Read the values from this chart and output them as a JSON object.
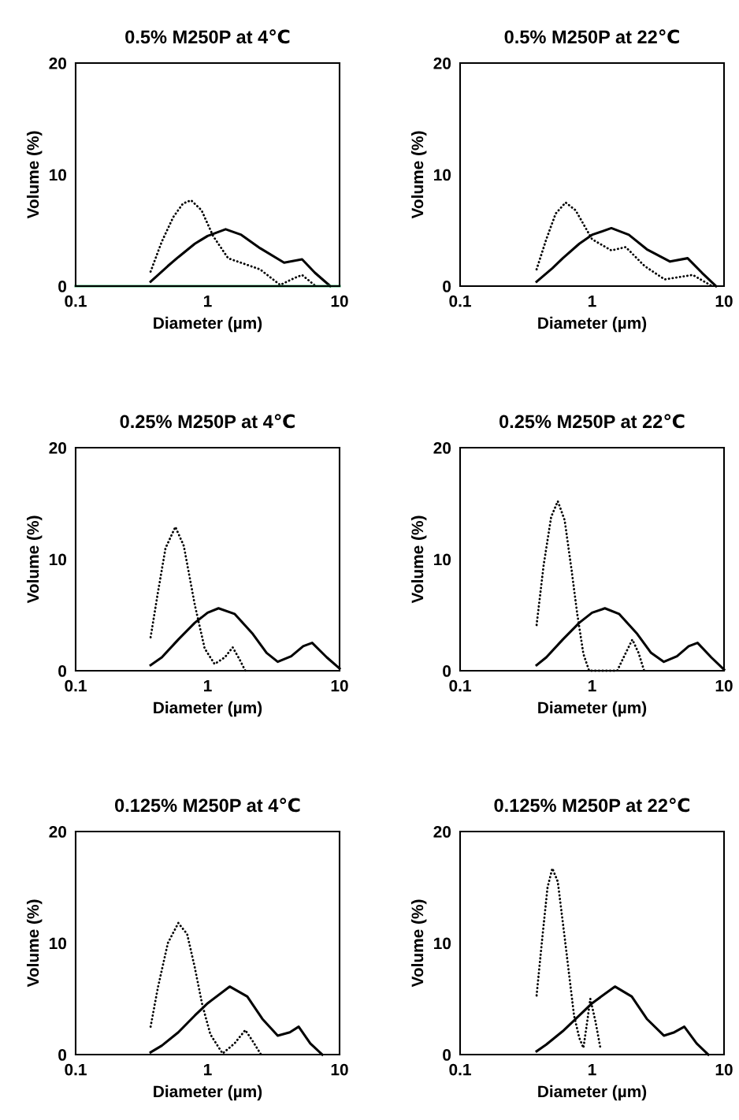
{
  "chart_data": [
    {
      "type": "line",
      "title": "0.5% M250P at 4℃",
      "xlabel": "Diameter (µm)",
      "ylabel": "Volume (%)",
      "log": "x",
      "xlim": [
        0.1,
        10
      ],
      "xticks": [
        0.1,
        1,
        10
      ],
      "ylim": [
        0,
        20
      ],
      "yticks": [
        0,
        10,
        20
      ],
      "grid": false,
      "marker": "none",
      "series": [
        {
          "x": [
            0.37,
            0.5,
            0.6,
            0.8,
            1.0,
            1.37,
            1.8,
            2.5,
            3.8,
            5.2,
            6.5,
            8.5
          ],
          "values": [
            0.4,
            1.8,
            2.6,
            3.8,
            4.5,
            5.1,
            4.6,
            3.4,
            2.1,
            2.4,
            1.2,
            0
          ],
          "color": "#000000",
          "line_style": "solid"
        },
        {
          "x": [
            0.37,
            0.45,
            0.55,
            0.65,
            0.75,
            0.9,
            1.1,
            1.43,
            2.0,
            2.5,
            3.55,
            4.5,
            5.2,
            6.6
          ],
          "values": [
            1.3,
            4.0,
            6.2,
            7.4,
            7.7,
            6.8,
            4.5,
            2.5,
            1.9,
            1.5,
            0.1,
            0.7,
            1.0,
            0
          ],
          "color": "#000000",
          "line_style": "dotted"
        },
        {
          "x": [
            0.1,
            10
          ],
          "values": [
            0,
            0
          ],
          "color": "#3cb371",
          "line_style": "solid"
        }
      ]
    },
    {
      "type": "line",
      "title": "0.5% M250P at 22℃",
      "xlabel": "Diameter (µm)",
      "ylabel": "Volume (%)",
      "log": "x",
      "xlim": [
        0.1,
        10
      ],
      "xticks": [
        0.1,
        1,
        10
      ],
      "ylim": [
        0,
        20
      ],
      "yticks": [
        0,
        10,
        20
      ],
      "grid": false,
      "marker": "none",
      "series": [
        {
          "x": [
            0.38,
            0.5,
            0.6,
            0.8,
            1.0,
            1.4,
            1.9,
            2.6,
            3.9,
            5.3,
            6.8,
            8.7
          ],
          "values": [
            0.4,
            1.6,
            2.5,
            3.8,
            4.6,
            5.2,
            4.6,
            3.3,
            2.2,
            2.5,
            1.2,
            0
          ],
          "color": "#000000",
          "line_style": "solid"
        },
        {
          "x": [
            0.38,
            0.45,
            0.53,
            0.63,
            0.75,
            1.0,
            1.4,
            1.8,
            2.5,
            3.55,
            4.5,
            5.8,
            8.1
          ],
          "values": [
            1.5,
            4.2,
            6.5,
            7.5,
            6.8,
            4.2,
            3.2,
            3.5,
            1.8,
            0.6,
            0.8,
            1.0,
            0
          ],
          "color": "#000000",
          "line_style": "dotted"
        }
      ]
    },
    {
      "type": "line",
      "title": "0.25% M250P at 4℃",
      "xlabel": "Diameter (µm)",
      "ylabel": "Volume (%)",
      "log": "x",
      "xlim": [
        0.1,
        10
      ],
      "xticks": [
        0.1,
        1,
        10
      ],
      "ylim": [
        0,
        20
      ],
      "yticks": [
        0,
        10,
        20
      ],
      "grid": false,
      "marker": "none",
      "series": [
        {
          "x": [
            0.37,
            0.45,
            0.6,
            0.8,
            1.0,
            1.21,
            1.6,
            2.2,
            2.8,
            3.4,
            4.3,
            5.3,
            6.2,
            8.0,
            10
          ],
          "values": [
            0.5,
            1.2,
            2.8,
            4.3,
            5.2,
            5.6,
            5.1,
            3.3,
            1.6,
            0.8,
            1.3,
            2.2,
            2.5,
            1.2,
            0.2
          ],
          "color": "#000000",
          "line_style": "solid"
        },
        {
          "x": [
            0.37,
            0.42,
            0.48,
            0.57,
            0.66,
            0.8,
            0.95,
            1.13,
            1.35,
            1.55,
            1.75,
            1.93
          ],
          "values": [
            3.0,
            7.0,
            11.0,
            12.9,
            11.2,
            5.9,
            2.0,
            0.6,
            1.2,
            2.1,
            1.0,
            0
          ],
          "color": "#000000",
          "line_style": "dotted"
        }
      ]
    },
    {
      "type": "line",
      "title": "0.25% M250P at 22℃",
      "xlabel": "Diameter (µm)",
      "ylabel": "Volume (%)",
      "log": "x",
      "xlim": [
        0.1,
        10
      ],
      "xticks": [
        0.1,
        1,
        10
      ],
      "ylim": [
        0,
        20
      ],
      "yticks": [
        0,
        10,
        20
      ],
      "grid": false,
      "marker": "none",
      "series": [
        {
          "x": [
            0.38,
            0.45,
            0.6,
            0.8,
            1.0,
            1.25,
            1.6,
            2.2,
            2.8,
            3.5,
            4.4,
            5.4,
            6.3,
            8.0,
            10
          ],
          "values": [
            0.5,
            1.2,
            2.8,
            4.3,
            5.2,
            5.6,
            5.1,
            3.3,
            1.6,
            0.8,
            1.3,
            2.2,
            2.5,
            1.2,
            0.1
          ],
          "color": "#000000",
          "line_style": "solid"
        },
        {
          "x": [
            0.38,
            0.43,
            0.49,
            0.55,
            0.62,
            0.7,
            0.77,
            0.86,
            0.95,
            1.55,
            1.8,
            2.02,
            2.25,
            2.48
          ],
          "values": [
            4.1,
            9.5,
            13.8,
            15.2,
            13.5,
            9.0,
            5.2,
            1.5,
            0,
            0,
            1.6,
            2.8,
            1.6,
            0
          ],
          "color": "#000000",
          "line_style": "dotted"
        }
      ]
    },
    {
      "type": "line",
      "title": "0.125% M250P at 4℃",
      "xlabel": "Diameter (µm)",
      "ylabel": "Volume (%)",
      "log": "x",
      "xlim": [
        0.1,
        10
      ],
      "xticks": [
        0.1,
        1,
        10
      ],
      "ylim": [
        0,
        20
      ],
      "yticks": [
        0,
        10,
        20
      ],
      "grid": false,
      "marker": "none",
      "series": [
        {
          "x": [
            0.37,
            0.45,
            0.6,
            0.8,
            1.0,
            1.47,
            2.0,
            2.6,
            3.4,
            4.2,
            4.9,
            6.0,
            7.4
          ],
          "values": [
            0.2,
            0.8,
            2.0,
            3.5,
            4.6,
            6.1,
            5.2,
            3.2,
            1.7,
            2.0,
            2.5,
            1.0,
            0
          ],
          "color": "#000000",
          "line_style": "solid"
        },
        {
          "x": [
            0.37,
            0.42,
            0.5,
            0.6,
            0.7,
            0.8,
            0.91,
            1.05,
            1.3,
            1.6,
            1.93,
            2.2,
            2.54
          ],
          "values": [
            2.5,
            6.0,
            10.0,
            11.8,
            10.8,
            7.8,
            4.5,
            1.8,
            0.1,
            1.0,
            2.2,
            1.2,
            0
          ],
          "color": "#000000",
          "line_style": "dotted"
        }
      ]
    },
    {
      "type": "line",
      "title": "0.125% M250P at 22℃",
      "xlabel": "Diameter (µm)",
      "ylabel": "Volume (%)",
      "log": "x",
      "xlim": [
        0.1,
        10
      ],
      "xticks": [
        0.1,
        1,
        10
      ],
      "ylim": [
        0,
        20
      ],
      "yticks": [
        0,
        10,
        20
      ],
      "grid": false,
      "marker": "none",
      "series": [
        {
          "x": [
            0.38,
            0.45,
            0.6,
            0.8,
            1.0,
            1.49,
            2.0,
            2.6,
            3.5,
            4.2,
            5.0,
            6.2,
            7.6
          ],
          "values": [
            0.3,
            0.9,
            2.1,
            3.5,
            4.6,
            6.1,
            5.2,
            3.2,
            1.7,
            2.0,
            2.5,
            1.0,
            0
          ],
          "color": "#000000",
          "line_style": "solid"
        },
        {
          "x": [
            0.38,
            0.42,
            0.46,
            0.5,
            0.55,
            0.62,
            0.73,
            0.8,
            0.86,
            0.92,
            0.97,
            1.06,
            1.16
          ],
          "values": [
            5.3,
            10.5,
            15.0,
            16.7,
            15.5,
            10.5,
            3.5,
            1.5,
            0.6,
            3.0,
            5.0,
            3.0,
            0.5
          ],
          "color": "#000000",
          "line_style": "dotted"
        }
      ]
    }
  ]
}
